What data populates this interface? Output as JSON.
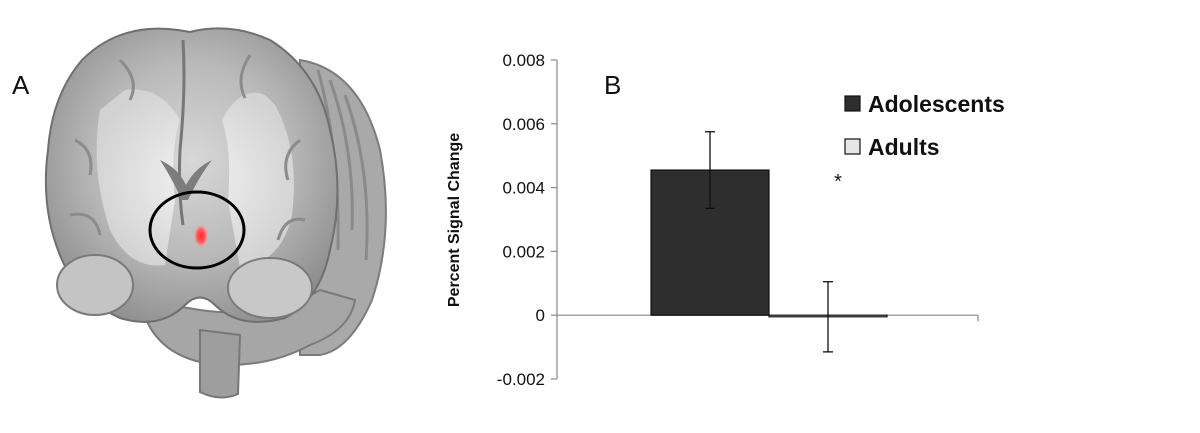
{
  "panel_a": {
    "label": "A",
    "highlight_color": "#ff4040"
  },
  "panel_b": {
    "label": "B",
    "significance_marker": "*"
  },
  "chart_data": {
    "type": "bar",
    "categories": [
      "Adolescents",
      "Adults"
    ],
    "values": [
      0.00455,
      -5e-05
    ],
    "errors": [
      0.0012,
      0.0011
    ],
    "colors": [
      "#2e2e2e",
      "#e6e6e6"
    ],
    "ylabel": "Percent Signal Change",
    "xlabel": "",
    "ylim": [
      -0.002,
      0.008
    ],
    "yticks": [
      -0.002,
      0,
      0.002,
      0.004,
      0.006,
      0.008
    ],
    "ytick_labels": [
      "-0.002",
      "0",
      "0.002",
      "0.004",
      "0.006",
      "0.008"
    ],
    "legend": [
      "Adolescents",
      "Adults"
    ],
    "legend_position": "top-right",
    "grid": false
  }
}
